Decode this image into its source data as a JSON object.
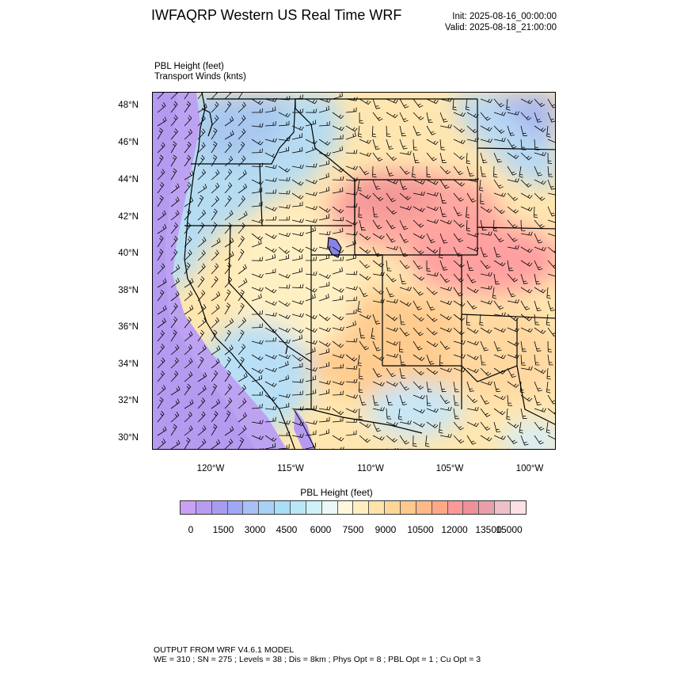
{
  "header": {
    "title": "IWFAQRP Western US Real Time WRF",
    "init": "Init: 2025-08-16_00:00:00",
    "valid": "Valid: 2025-08-18_21:00:00"
  },
  "field": {
    "label1": "PBL Height   (feet)",
    "label2": "Transport Winds   (knts)"
  },
  "map": {
    "lat_ticks": [
      "48°N",
      "46°N",
      "44°N",
      "42°N",
      "40°N",
      "38°N",
      "36°N",
      "34°N",
      "32°N",
      "30°N"
    ],
    "lon_ticks": [
      "120°W",
      "115°W",
      "110°W",
      "105°W",
      "100°W"
    ]
  },
  "colorbar": {
    "title": "PBL Height  (feet)",
    "labels": [
      "0",
      "1500",
      "3000",
      "4500",
      "6000",
      "7500",
      "9000",
      "10500",
      "12000",
      "13500",
      "15000"
    ],
    "colors": [
      "#c9a0f5",
      "#b99cf0",
      "#a79cf0",
      "#a0a8f5",
      "#a8c0f5",
      "#a8d0f8",
      "#a8def8",
      "#b8e8f8",
      "#d0f0f8",
      "#ecf8f8",
      "#fff8dc",
      "#ffefbe",
      "#ffe3a8",
      "#ffd698",
      "#ffc88c",
      "#ffb888",
      "#ffa888",
      "#ff9898",
      "#f09098",
      "#e8a0a8",
      "#f0c0c8",
      "#fde0e6"
    ]
  },
  "footer": {
    "line1": "OUTPUT FROM WRF V4.6.1 MODEL",
    "line2": "WE = 310 ; SN = 275 ; Levels = 38 ; Dis = 8km ; Phys Opt = 8 ; PBL Opt = 1 ; Cu Opt = 3"
  }
}
